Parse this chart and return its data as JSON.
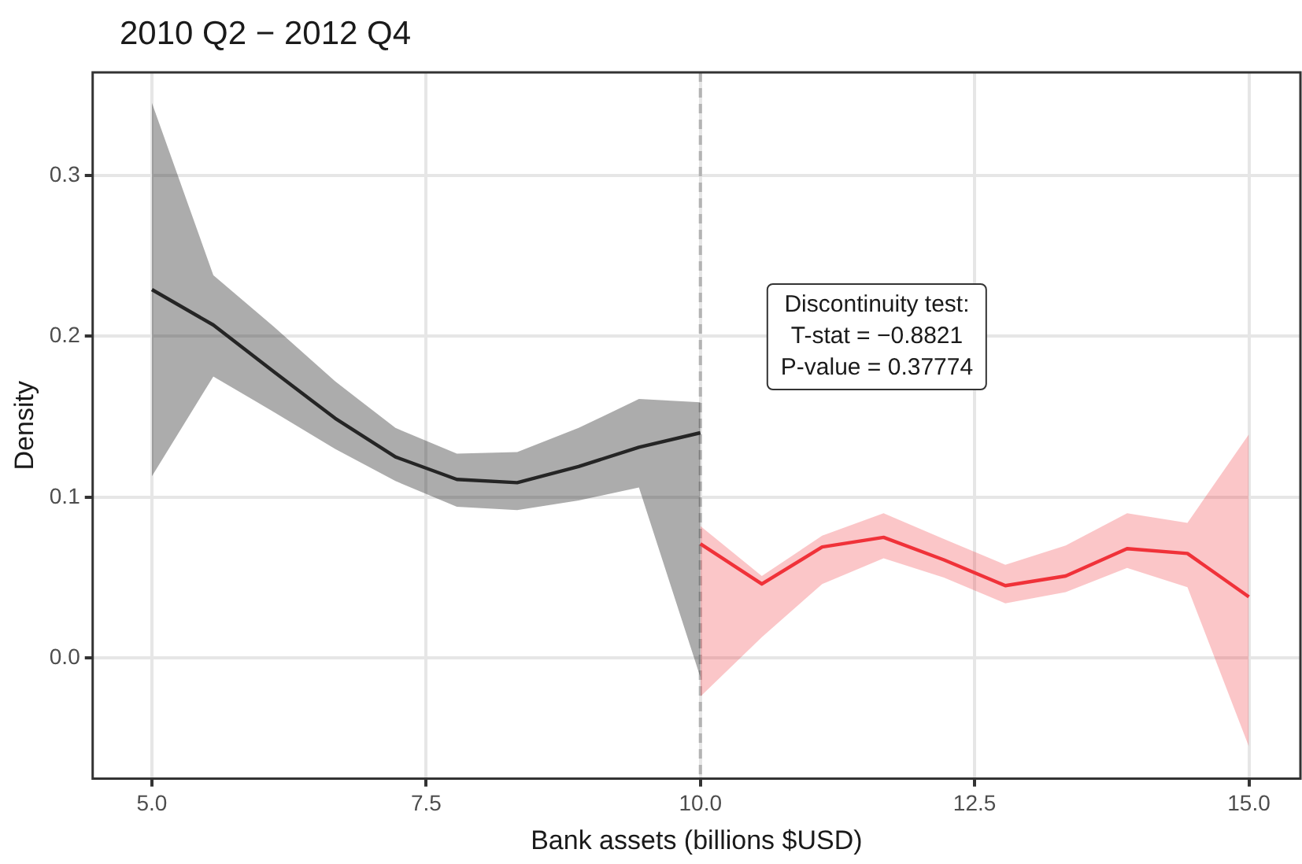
{
  "chart_data": {
    "type": "line",
    "title": "2010 Q2 − 2012 Q4",
    "xlabel": "Bank assets (billions $USD)",
    "ylabel": "Density",
    "xlim": [
      4.46,
      15.47
    ],
    "xticks": [
      {
        "value": 5,
        "label": "5.0"
      },
      7.5,
      {
        "value": 10,
        "label": "10.0"
      },
      12.5,
      {
        "value": 15,
        "label": "15.0"
      }
    ],
    "ylim": [
      -0.075,
      0.364
    ],
    "yticks": [
      {
        "value": 0,
        "label": "0.0"
      },
      0.1,
      0.2,
      0.3
    ],
    "grid": true,
    "legend": false,
    "marker": "none",
    "line_style": "solid",
    "ref_lines": [
      {
        "axis": "x",
        "value": 10,
        "color": "#b3b3b3",
        "line_style": "dashed"
      }
    ],
    "annotations": [
      "Discontinuity test:\nT-stat = −0.8821\nP-value = 0.37774"
    ],
    "series": [
      {
        "color": "#262626",
        "x": [
          5,
          5.56,
          6.11,
          6.67,
          7.22,
          7.78,
          8.33,
          8.89,
          9.44,
          10
        ],
        "values": [
          0.229,
          0.207,
          0.178,
          0.149,
          0.125,
          0.111,
          0.109,
          0.119,
          0.131,
          0.14
        ],
        "lower": [
          0.113,
          0.175,
          0.153,
          0.13,
          0.11,
          0.094,
          0.092,
          0.098,
          0.106,
          -0.012
        ],
        "upper": [
          0.345,
          0.238,
          0.206,
          0.172,
          0.143,
          0.127,
          0.128,
          0.143,
          0.161,
          0.159
        ]
      },
      {
        "color": "#f0323a",
        "x": [
          10,
          10.56,
          11.11,
          11.67,
          12.22,
          12.78,
          13.33,
          13.89,
          14.44,
          15
        ],
        "values": [
          0.071,
          0.046,
          0.069,
          0.075,
          0.061,
          0.045,
          0.051,
          0.068,
          0.065,
          0.038
        ],
        "lower": [
          -0.024,
          0.013,
          0.046,
          0.062,
          0.05,
          0.034,
          0.041,
          0.056,
          0.044,
          -0.055
        ],
        "upper": [
          0.082,
          0.051,
          0.076,
          0.09,
          0.074,
          0.058,
          0.07,
          0.09,
          0.084,
          0.139
        ]
      }
    ]
  }
}
